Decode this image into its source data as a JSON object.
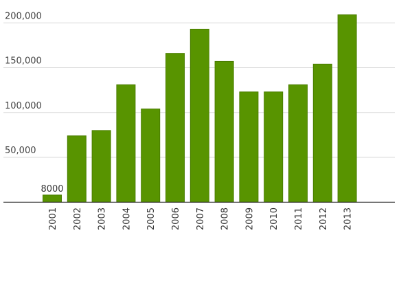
{
  "chart_data": {
    "type": "bar",
    "title": "",
    "xlabel": "",
    "ylabel": "",
    "categories": [
      "2001",
      "2002",
      "2003",
      "2004",
      "2005",
      "2006",
      "2007",
      "2008",
      "2009",
      "2010",
      "2011",
      "2012",
      "2013"
    ],
    "values": [
      8000,
      74000,
      80000,
      131000,
      104000,
      166000,
      193000,
      157000,
      123000,
      123000,
      131000,
      154000,
      209000
    ],
    "data_labels": [
      {
        "index": 0,
        "text": "8000"
      }
    ],
    "yticks": [
      50000,
      100000,
      150000,
      200000
    ],
    "ytick_labels": [
      "50,000",
      "100,000",
      "150,000",
      "200,000"
    ],
    "ylim": [
      0,
      200000
    ],
    "grid": true,
    "legend": "none",
    "colors": {
      "bar": "#589400",
      "bar_border": "#4a7d00",
      "grid": "#d9d9d9",
      "axis": "#333333"
    }
  }
}
